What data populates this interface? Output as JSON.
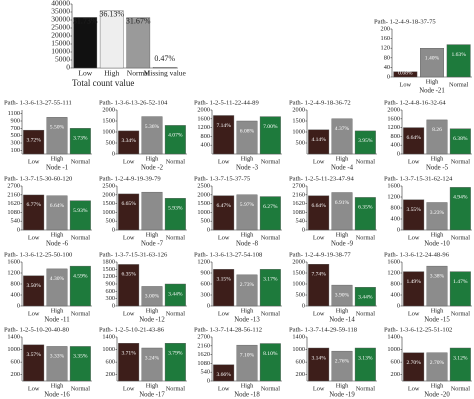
{
  "chart_data": [
    {
      "type": "bar",
      "x_label": "Total count value",
      "categories": [
        "Low",
        "High",
        "Normal",
        "Missing value"
      ],
      "values": [
        31600,
        35800,
        31500,
        470
      ],
      "annotations": [
        "31.73%",
        "36.13%",
        "31.67%",
        "0.47%"
      ],
      "colors": [
        "#111111",
        "#eeeeee",
        "#9a9a9a",
        "#cccccc"
      ],
      "ylim": [
        0,
        40000
      ],
      "yticks": [
        0,
        5000,
        10000,
        15000,
        20000,
        25000,
        30000,
        35000,
        40000
      ]
    },
    {
      "type": "bar",
      "title": "Path- 1-2-4-9-18-37-75",
      "x_label": "Node -21",
      "categories": [
        "Low",
        "High",
        "Normal"
      ],
      "values": [
        22,
        120,
        135
      ],
      "annotations": [
        "0.68%",
        "1.40%",
        "1.63%"
      ],
      "colors": [
        "#3d1e1a",
        "#8c8c8c",
        "#1e7a3c"
      ],
      "ylim": [
        0,
        200
      ],
      "yticks": [
        0,
        40,
        80,
        120,
        160,
        200
      ]
    },
    {
      "type": "bar",
      "title": "Path- 1-3-6-13-27-55-111",
      "x_label": "Node -1",
      "categories": [
        "Low",
        "High",
        "Normal"
      ],
      "values": [
        650,
        1000,
        700
      ],
      "annotations": [
        "3.72%",
        "5.50%",
        "3.73%"
      ],
      "colors": [
        "#3d1e1a",
        "#8c8c8c",
        "#1e7a3c"
      ],
      "ylim": [
        0,
        1200
      ],
      "yticks": [
        100,
        300,
        500,
        700,
        900,
        1100
      ]
    },
    {
      "type": "bar",
      "title": "Path- 1-3-6-13-26-52-104",
      "x_label": "Node -2",
      "categories": [
        "Low",
        "High",
        "Normal"
      ],
      "values": [
        1050,
        1700,
        1300
      ],
      "annotations": [
        "3.34%",
        "5.36%",
        "4.07%"
      ],
      "colors": [
        "#3d1e1a",
        "#8c8c8c",
        "#1e7a3c"
      ],
      "ylim": [
        0,
        2000
      ],
      "yticks": [
        0,
        500,
        1000,
        1500,
        2000
      ]
    },
    {
      "type": "bar",
      "title": "Path- 1-2-5-11-22-44-89",
      "x_label": "Node -3",
      "categories": [
        "Low",
        "High",
        "Normal"
      ],
      "values": [
        1750,
        1500,
        1700
      ],
      "annotations": [
        "7.14%",
        "6.08%",
        "7.00%"
      ],
      "colors": [
        "#3d1e1a",
        "#8c8c8c",
        "#1e7a3c"
      ],
      "ylim": [
        0,
        2000
      ],
      "yticks": [
        400,
        800,
        1200,
        1600,
        2000
      ]
    },
    {
      "type": "bar",
      "title": "Path- 1-2-4-9-18-36-72",
      "x_label": "Node -4",
      "categories": [
        "Low",
        "High",
        "Normal"
      ],
      "values": [
        1100,
        1600,
        1050
      ],
      "annotations": [
        "4.14%",
        "4.37%",
        "3.95%"
      ],
      "colors": [
        "#3d1e1a",
        "#8c8c8c",
        "#1e7a3c"
      ],
      "ylim": [
        0,
        2000
      ],
      "yticks": [
        500,
        1000,
        1500,
        2000
      ]
    },
    {
      "type": "bar",
      "title": "Path- 1-2-4-8-16-32-64",
      "x_label": "Node -5",
      "categories": [
        "Low",
        "High",
        "Normal"
      ],
      "values": [
        1200,
        1550,
        1150
      ],
      "annotations": [
        "6.64%",
        "8.26",
        "6.38%"
      ],
      "colors": [
        "#3d1e1a",
        "#8c8c8c",
        "#1e7a3c"
      ],
      "ylim": [
        0,
        2000
      ],
      "yticks": [
        0,
        400,
        800,
        1200,
        1600,
        2000
      ]
    },
    {
      "type": "bar",
      "title": "Path- 1-3-7-15-30-60-120",
      "x_label": "Node -6",
      "categories": [
        "Low",
        "High",
        "Normal"
      ],
      "values": [
        2150,
        2100,
        1800
      ],
      "annotations": [
        "6.77%",
        "6.64%",
        "5.93%"
      ],
      "colors": [
        "#3d1e1a",
        "#8c8c8c",
        "#1e7a3c"
      ],
      "ylim": [
        0,
        2700
      ],
      "yticks": [
        0,
        540,
        1080,
        1620,
        2160,
        2700
      ]
    },
    {
      "type": "bar",
      "title": "Path- 1-2-4-9-19-39-79",
      "x_label": "Node -7",
      "categories": [
        "Low",
        "High",
        "Normal"
      ],
      "values": [
        2050,
        2150,
        1800
      ],
      "annotations": [
        "6.65%",
        null,
        "5.93%"
      ],
      "colors": [
        "#3d1e1a",
        "#8c8c8c",
        "#1e7a3c"
      ],
      "ylim": [
        0,
        2500
      ],
      "yticks": [
        0,
        500,
        1000,
        1500,
        2000,
        2500
      ]
    },
    {
      "type": "bar",
      "title": "Path- 1-3-7-15-37-75",
      "x_label": "Node -8",
      "categories": [
        "Low",
        "High",
        "Normal"
      ],
      "values": [
        1950,
        2000,
        1900
      ],
      "annotations": [
        "6.47%",
        "5.97%",
        "6.27%"
      ],
      "colors": [
        "#3d1e1a",
        "#8c8c8c",
        "#1e7a3c"
      ],
      "ylim": [
        0,
        2500
      ],
      "yticks": [
        0,
        500,
        1000,
        1500,
        2000,
        2500
      ]
    },
    {
      "type": "bar",
      "title": "Path- 1-2-5-11-23-47-94",
      "x_label": "Node -9",
      "categories": [
        "Low",
        "High",
        "Normal"
      ],
      "values": [
        2100,
        2300,
        2000
      ],
      "annotations": [
        "6.64%",
        "6.91%",
        "6.35%"
      ],
      "colors": [
        "#3d1e1a",
        "#8c8c8c",
        "#1e7a3c"
      ],
      "ylim": [
        0,
        2700
      ],
      "yticks": [
        0,
        540,
        1080,
        1620,
        2160,
        2700
      ]
    },
    {
      "type": "bar",
      "title": "Path- 1-3-7-15-31-62-124",
      "x_label": "Node -10",
      "categories": [
        "Low",
        "High",
        "Normal"
      ],
      "values": [
        1100,
        1000,
        1550
      ],
      "annotations": [
        "3.55%",
        "3.23%",
        "4.94%"
      ],
      "colors": [
        "#3d1e1a",
        "#8c8c8c",
        "#1e7a3c"
      ],
      "ylim": [
        0,
        1600
      ],
      "yticks": [
        0,
        400,
        800,
        1200,
        1600
      ]
    },
    {
      "type": "bar",
      "title": "Path- 1-3-6-12-25-50-100",
      "x_label": "Node -11",
      "categories": [
        "Low",
        "High",
        "Normal"
      ],
      "values": [
        1100,
        1350,
        1450
      ],
      "annotations": [
        "3.50%",
        "4.30%",
        "4.59%"
      ],
      "colors": [
        "#3d1e1a",
        "#8c8c8c",
        "#1e7a3c"
      ],
      "ylim": [
        0,
        1600
      ],
      "yticks": [
        0,
        400,
        800,
        1200,
        1600
      ]
    },
    {
      "type": "bar",
      "title": "Path- 1-3-7-15-31-63-126",
      "x_label": "Node -12",
      "categories": [
        "Low",
        "High",
        "Normal"
      ],
      "values": [
        1700,
        800,
        900
      ],
      "annotations": [
        "6.35%",
        "3.00%",
        "3.44%"
      ],
      "colors": [
        "#3d1e1a",
        "#8c8c8c",
        "#1e7a3c"
      ],
      "ylim": [
        0,
        1800
      ],
      "yticks": [
        0,
        300,
        600,
        900,
        1200,
        1500,
        1800
      ]
    },
    {
      "type": "bar",
      "title": "Path- 1-3-6-13-27-54-108",
      "x_label": "Node -13",
      "categories": [
        "Low",
        "High",
        "Normal"
      ],
      "values": [
        1000,
        850,
        1000
      ],
      "annotations": [
        "3.15%",
        "2.73%",
        "3.17%"
      ],
      "colors": [
        "#3d1e1a",
        "#8c8c8c",
        "#1e7a3c"
      ],
      "ylim": [
        0,
        1200
      ],
      "yticks": [
        0,
        300,
        600,
        900,
        1200
      ]
    },
    {
      "type": "bar",
      "title": "Path- 1-2-4-9-19-38-77",
      "x_label": "Node -14",
      "categories": [
        "Low",
        "High",
        "Normal"
      ],
      "values": [
        1900,
        950,
        850
      ],
      "annotations": [
        "7.74%",
        "3.90%",
        "3.44%"
      ],
      "colors": [
        "#3d1e1a",
        "#8c8c8c",
        "#1e7a3c"
      ],
      "ylim": [
        0,
        2000
      ],
      "yticks": [
        0,
        500,
        1000,
        1500,
        2000
      ]
    },
    {
      "type": "bar",
      "title": "Path- 1-3-6-12-24-48-96",
      "x_label": "Node -15",
      "categories": [
        "Low",
        "High",
        "Normal"
      ],
      "values": [
        1250,
        1450,
        1250
      ],
      "annotations": [
        "1.49%",
        "3.38%",
        "1.47%"
      ],
      "colors": [
        "#3d1e1a",
        "#8c8c8c",
        "#1e7a3c"
      ],
      "ylim": [
        0,
        1600
      ],
      "yticks": [
        0,
        400,
        800,
        1200,
        1600
      ]
    },
    {
      "type": "bar",
      "title": "Path- 1-2-5-10-20-40-80",
      "x_label": "Node -16",
      "categories": [
        "Low",
        "High",
        "Normal"
      ],
      "values": [
        1150,
        1100,
        1100
      ],
      "annotations": [
        "3.57%",
        "3.33%",
        "3.35%"
      ],
      "colors": [
        "#3d1e1a",
        "#8c8c8c",
        "#1e7a3c"
      ],
      "ylim": [
        0,
        1400
      ],
      "yticks": [
        200,
        600,
        1000,
        1400
      ]
    },
    {
      "type": "bar",
      "title": "Path- 1-2-5-10-21-43-86",
      "x_label": "Node -17",
      "categories": [
        "Low",
        "High",
        "Normal"
      ],
      "values": [
        1200,
        1050,
        1200
      ],
      "annotations": [
        "3.71%",
        "3.24%",
        "3.79%"
      ],
      "colors": [
        "#3d1e1a",
        "#8c8c8c",
        "#1e7a3c"
      ],
      "ylim": [
        0,
        1400
      ],
      "yticks": [
        200,
        600,
        1000,
        1400
      ]
    },
    {
      "type": "bar",
      "title": "Path- 1-3-7-14-28-56-112",
      "x_label": "Node -18",
      "categories": [
        "Low",
        "High",
        "Normal"
      ],
      "values": [
        1000,
        2200,
        2300
      ],
      "annotations": [
        "3.66%",
        "7.10%",
        "8.10%"
      ],
      "colors": [
        "#3d1e1a",
        "#8c8c8c",
        "#1e7a3c"
      ],
      "ylim": [
        0,
        2700
      ],
      "yticks": [
        0,
        540,
        1080,
        1620,
        2160,
        2700
      ]
    },
    {
      "type": "bar",
      "title": "Path- 1-3-7-14-29-59-118",
      "x_label": "Node -19",
      "categories": [
        "Low",
        "High",
        "Normal"
      ],
      "values": [
        1050,
        950,
        1050
      ],
      "annotations": [
        "3.14%",
        "2.76%",
        "3.13%"
      ],
      "colors": [
        "#3d1e1a",
        "#8c8c8c",
        "#1e7a3c"
      ],
      "ylim": [
        0,
        1400
      ],
      "yticks": [
        200,
        600,
        1000,
        1400
      ]
    },
    {
      "type": "bar",
      "title": "Path- 1-3-6-12-25-51-102",
      "x_label": "Node -20",
      "categories": [
        "Low",
        "High",
        "Normal"
      ],
      "values": [
        900,
        900,
        1050
      ],
      "annotations": [
        "2.70%",
        "2.70%",
        "3.12%"
      ],
      "colors": [
        "#3d1e1a",
        "#8c8c8c",
        "#1e7a3c"
      ],
      "ylim": [
        0,
        1400
      ],
      "yticks": [
        200,
        600,
        1000,
        1400
      ]
    }
  ]
}
